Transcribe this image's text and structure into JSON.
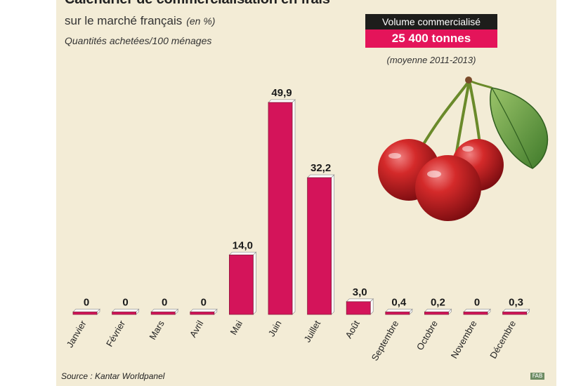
{
  "chart_data": {
    "type": "bar",
    "title": "Calendrier de commercialisation en frais",
    "subtitle": "sur le marché français",
    "unit": "(en %)",
    "subtitle2": "Quantités achetées/100 ménages",
    "categories": [
      "Janvier",
      "Février",
      "Mars",
      "Avril",
      "Mai",
      "Juin",
      "Juillet",
      "Août",
      "Septembre",
      "Octobre",
      "Novembre",
      "Décembre"
    ],
    "values": [
      0,
      0,
      0,
      0,
      14.0,
      49.9,
      32.2,
      3.0,
      0.4,
      0.2,
      0,
      0.3
    ],
    "value_labels": [
      "0",
      "0",
      "0",
      "0",
      "14,0",
      "49,9",
      "32,2",
      "3,0",
      "0,4",
      "0,2",
      "0",
      "0,3"
    ],
    "ylim": [
      0,
      50
    ],
    "grid": false,
    "colors": {
      "bar": "#d4145a",
      "bar_top": "#f2e6ea",
      "bar_shade": "#a31a45",
      "background": "#f3ecd6"
    }
  },
  "volume_box": {
    "header": "Volume commercialisé",
    "value": "25 400 tonnes",
    "period": "(moyenne 2011-2013)"
  },
  "source": "Source : Kantar Worldpanel",
  "logo": "FAB",
  "illustration": {
    "icon": "cherries-icon"
  }
}
